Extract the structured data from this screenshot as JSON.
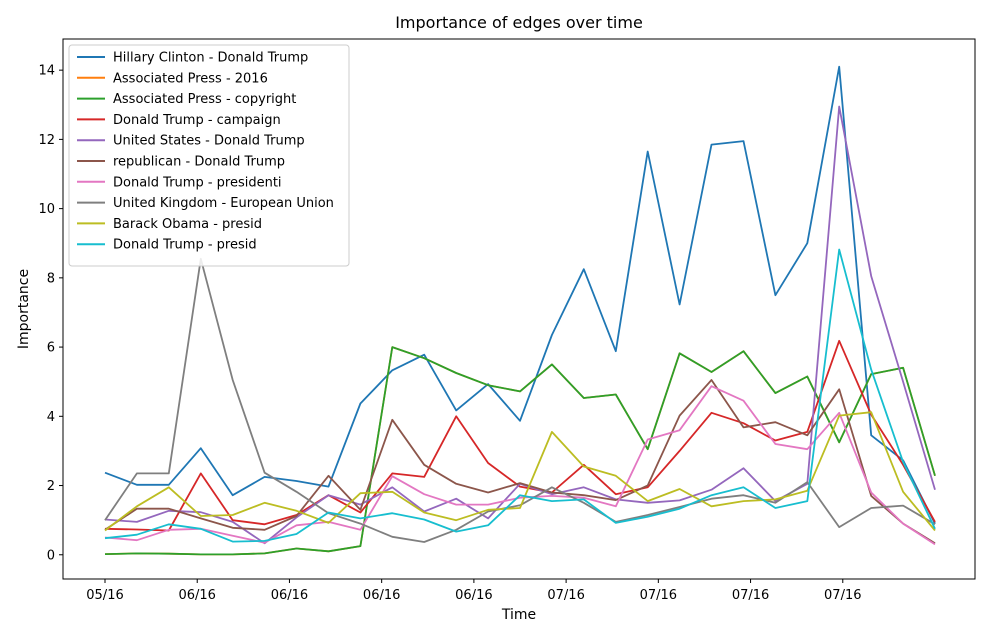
{
  "chart_data": {
    "type": "line",
    "title": "Importance of edges over time",
    "xlabel": "Time",
    "ylabel": "Importance",
    "x_tick_labels": [
      "05/16",
      "06/16",
      "06/16",
      "06/16",
      "06/16",
      "07/16",
      "07/16",
      "07/16",
      "07/16"
    ],
    "y_ticks": [
      0,
      2,
      4,
      6,
      8,
      10,
      12,
      14
    ],
    "ylim": [
      -0.7,
      14.9
    ],
    "grid": false,
    "legend_position": "top-left",
    "series": [
      {
        "name": "Hillary Clinton - Donald Trump",
        "color": "#1f77b4",
        "values": [
          2.37,
          2.02,
          2.02,
          3.08,
          1.72,
          2.25,
          2.13,
          1.97,
          4.37,
          5.33,
          5.78,
          4.17,
          4.93,
          3.87,
          6.35,
          8.25,
          5.88,
          11.65,
          7.23,
          11.85,
          11.95,
          7.5,
          9.0,
          14.1,
          3.45,
          2.73,
          0.9
        ]
      },
      {
        "name": "Associated Press - 2016",
        "color": "#ff7f0e",
        "values": [
          0.02,
          0.04,
          0.03,
          0.01,
          0.01,
          0.04,
          0.18,
          0.1,
          0.25,
          6.0,
          5.68,
          5.25,
          4.9,
          4.72,
          5.5,
          4.53,
          4.63,
          3.05,
          5.82,
          5.28,
          5.88,
          4.67,
          5.15,
          3.25,
          5.22,
          5.4,
          2.28
        ]
      },
      {
        "name": "Associated Press - copyright",
        "color": "#2ca02c",
        "values": [
          0.02,
          0.04,
          0.03,
          0.01,
          0.01,
          0.04,
          0.18,
          0.1,
          0.25,
          6.0,
          5.68,
          5.25,
          4.9,
          4.72,
          5.5,
          4.53,
          4.63,
          3.05,
          5.82,
          5.28,
          5.88,
          4.67,
          5.15,
          3.25,
          5.22,
          5.4,
          2.28
        ]
      },
      {
        "name": "Donald Trump - campaign",
        "color": "#d62728",
        "values": [
          0.75,
          0.73,
          0.7,
          2.35,
          1.0,
          0.88,
          1.15,
          1.72,
          1.22,
          2.35,
          2.25,
          4.0,
          2.65,
          1.97,
          1.8,
          2.6,
          1.75,
          1.95,
          3.0,
          4.1,
          3.8,
          3.3,
          3.55,
          6.18,
          4.05,
          2.6,
          0.95
        ]
      },
      {
        "name": "United States - Donald Trump",
        "color": "#9467bd",
        "values": [
          1.02,
          0.95,
          1.27,
          1.23,
          0.95,
          0.33,
          1.08,
          1.72,
          1.45,
          1.95,
          1.25,
          1.62,
          1.05,
          2.05,
          1.75,
          1.95,
          1.6,
          1.5,
          1.57,
          1.88,
          2.5,
          1.55,
          2.05,
          12.95,
          8.05,
          5.0,
          1.88
        ]
      },
      {
        "name": "republican - Donald Trump",
        "color": "#8c564b",
        "values": [
          0.72,
          1.33,
          1.33,
          1.05,
          0.78,
          0.72,
          1.12,
          2.28,
          1.3,
          3.9,
          2.6,
          2.05,
          1.8,
          2.07,
          1.8,
          1.72,
          1.58,
          2.0,
          4.02,
          5.05,
          3.68,
          3.83,
          3.45,
          4.78,
          1.7,
          0.9,
          0.33
        ]
      },
      {
        "name": "Donald Trump - presidenti",
        "color": "#e377c2",
        "values": [
          0.5,
          0.42,
          0.72,
          0.75,
          0.55,
          0.35,
          0.85,
          0.95,
          0.72,
          2.27,
          1.75,
          1.45,
          1.45,
          1.65,
          1.7,
          1.65,
          1.4,
          3.33,
          3.6,
          4.87,
          4.45,
          3.2,
          3.05,
          4.1,
          1.8,
          0.9,
          0.3
        ]
      },
      {
        "name": "United Kingdom - European Union",
        "color": "#7f7f7f",
        "values": [
          1.0,
          2.35,
          2.35,
          8.55,
          5.05,
          2.37,
          1.82,
          1.2,
          0.9,
          0.52,
          0.37,
          0.72,
          1.25,
          1.43,
          1.95,
          1.5,
          0.95,
          1.15,
          1.38,
          1.62,
          1.72,
          1.5,
          2.1,
          0.8,
          1.35,
          1.42,
          0.88
        ]
      },
      {
        "name": "Barack Obama - presid",
        "color": "#bcbd22",
        "values": [
          0.7,
          1.4,
          1.95,
          1.12,
          1.15,
          1.5,
          1.27,
          0.92,
          1.78,
          1.82,
          1.22,
          1.0,
          1.3,
          1.35,
          3.55,
          2.55,
          2.28,
          1.55,
          1.9,
          1.4,
          1.55,
          1.6,
          1.85,
          4.02,
          4.12,
          1.82,
          0.7
        ]
      },
      {
        "name": "Donald Trump - presid",
        "color": "#17becf",
        "values": [
          0.48,
          0.58,
          0.88,
          0.75,
          0.38,
          0.4,
          0.6,
          1.22,
          1.05,
          1.2,
          1.02,
          0.67,
          0.85,
          1.72,
          1.55,
          1.6,
          0.92,
          1.1,
          1.33,
          1.72,
          1.95,
          1.35,
          1.55,
          8.82,
          5.35,
          2.68,
          0.75
        ]
      }
    ]
  }
}
